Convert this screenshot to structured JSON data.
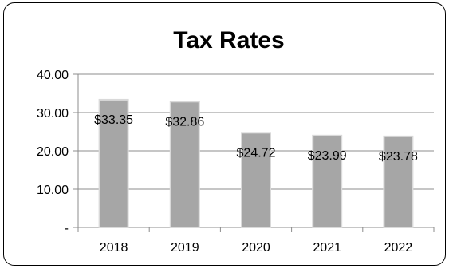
{
  "chart_data": {
    "type": "bar",
    "title": "Tax Rates",
    "categories": [
      "2018",
      "2019",
      "2020",
      "2021",
      "2022"
    ],
    "values": [
      33.35,
      32.86,
      24.72,
      23.99,
      23.78
    ],
    "data_labels": [
      "$33.35",
      "$32.86",
      "$24.72",
      "$23.99",
      "$23.78"
    ],
    "y_ticks": [
      {
        "value": 0,
        "label": "-"
      },
      {
        "value": 10,
        "label": "10.00"
      },
      {
        "value": 20,
        "label": "20.00"
      },
      {
        "value": 30,
        "label": "30.00"
      },
      {
        "value": 40,
        "label": "40.00"
      }
    ],
    "ylim": [
      0,
      40
    ],
    "xlabel": "",
    "ylabel": "",
    "grid": true,
    "legend": "none",
    "colors": {
      "bar": "#a6a6a6",
      "bar_edge": "#d9d9d9",
      "grid": "#8c8c8c",
      "frame": "#000000"
    }
  }
}
